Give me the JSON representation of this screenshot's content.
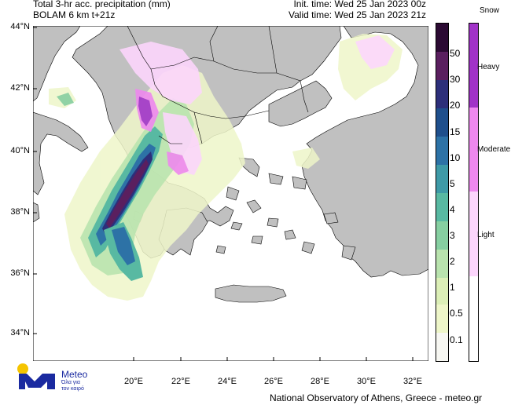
{
  "header": {
    "title_line1": "Total 3-hr acc. precipitation (mm)",
    "title_line2": "BOLAM 6 km t+21z",
    "init_time": "Init. time: Wed 25 Jan 2023 00z",
    "valid_time": "Valid time: Wed 25 Jan 2023 21z"
  },
  "map": {
    "lon_range": [
      15.5,
      32.5
    ],
    "lat_range": [
      33.0,
      44.0
    ],
    "lat_ticks": [
      "44°N",
      "42°N",
      "40°N",
      "38°N",
      "36°N",
      "34°N"
    ],
    "lon_ticks": [
      "20°E",
      "22°E",
      "24°E",
      "26°E",
      "28°E",
      "30°E",
      "32°E"
    ],
    "colors": {
      "sea": "#ffffff",
      "land": "#c0c0c0"
    }
  },
  "precip_legend": {
    "labels": [
      "50",
      "30",
      "20",
      "15",
      "10",
      "5",
      "4",
      "3",
      "2",
      "1",
      "0.5",
      "0.1"
    ],
    "colors": [
      "#2b0a33",
      "#5a1f5f",
      "#2d2f7a",
      "#1f4f8c",
      "#2d72a6",
      "#3e9aa7",
      "#58b9a2",
      "#86cfa1",
      "#b9e3ae",
      "#dcefb7",
      "#eef6c9",
      "#f7f7f2"
    ]
  },
  "snow_legend": {
    "title": "Snow",
    "labels": [
      "Heavy",
      "Moderate",
      "Light"
    ],
    "colors": [
      "#a133c8",
      "#ee88ee",
      "#fcd6fc",
      "#ffffff"
    ]
  },
  "footer": {
    "credit": "National Observatory of Athens, Greece - meteo.gr",
    "logo_name": "Meteo",
    "logo_tagline_1": "Όλα για",
    "logo_tagline_2": "τον καιρό"
  }
}
